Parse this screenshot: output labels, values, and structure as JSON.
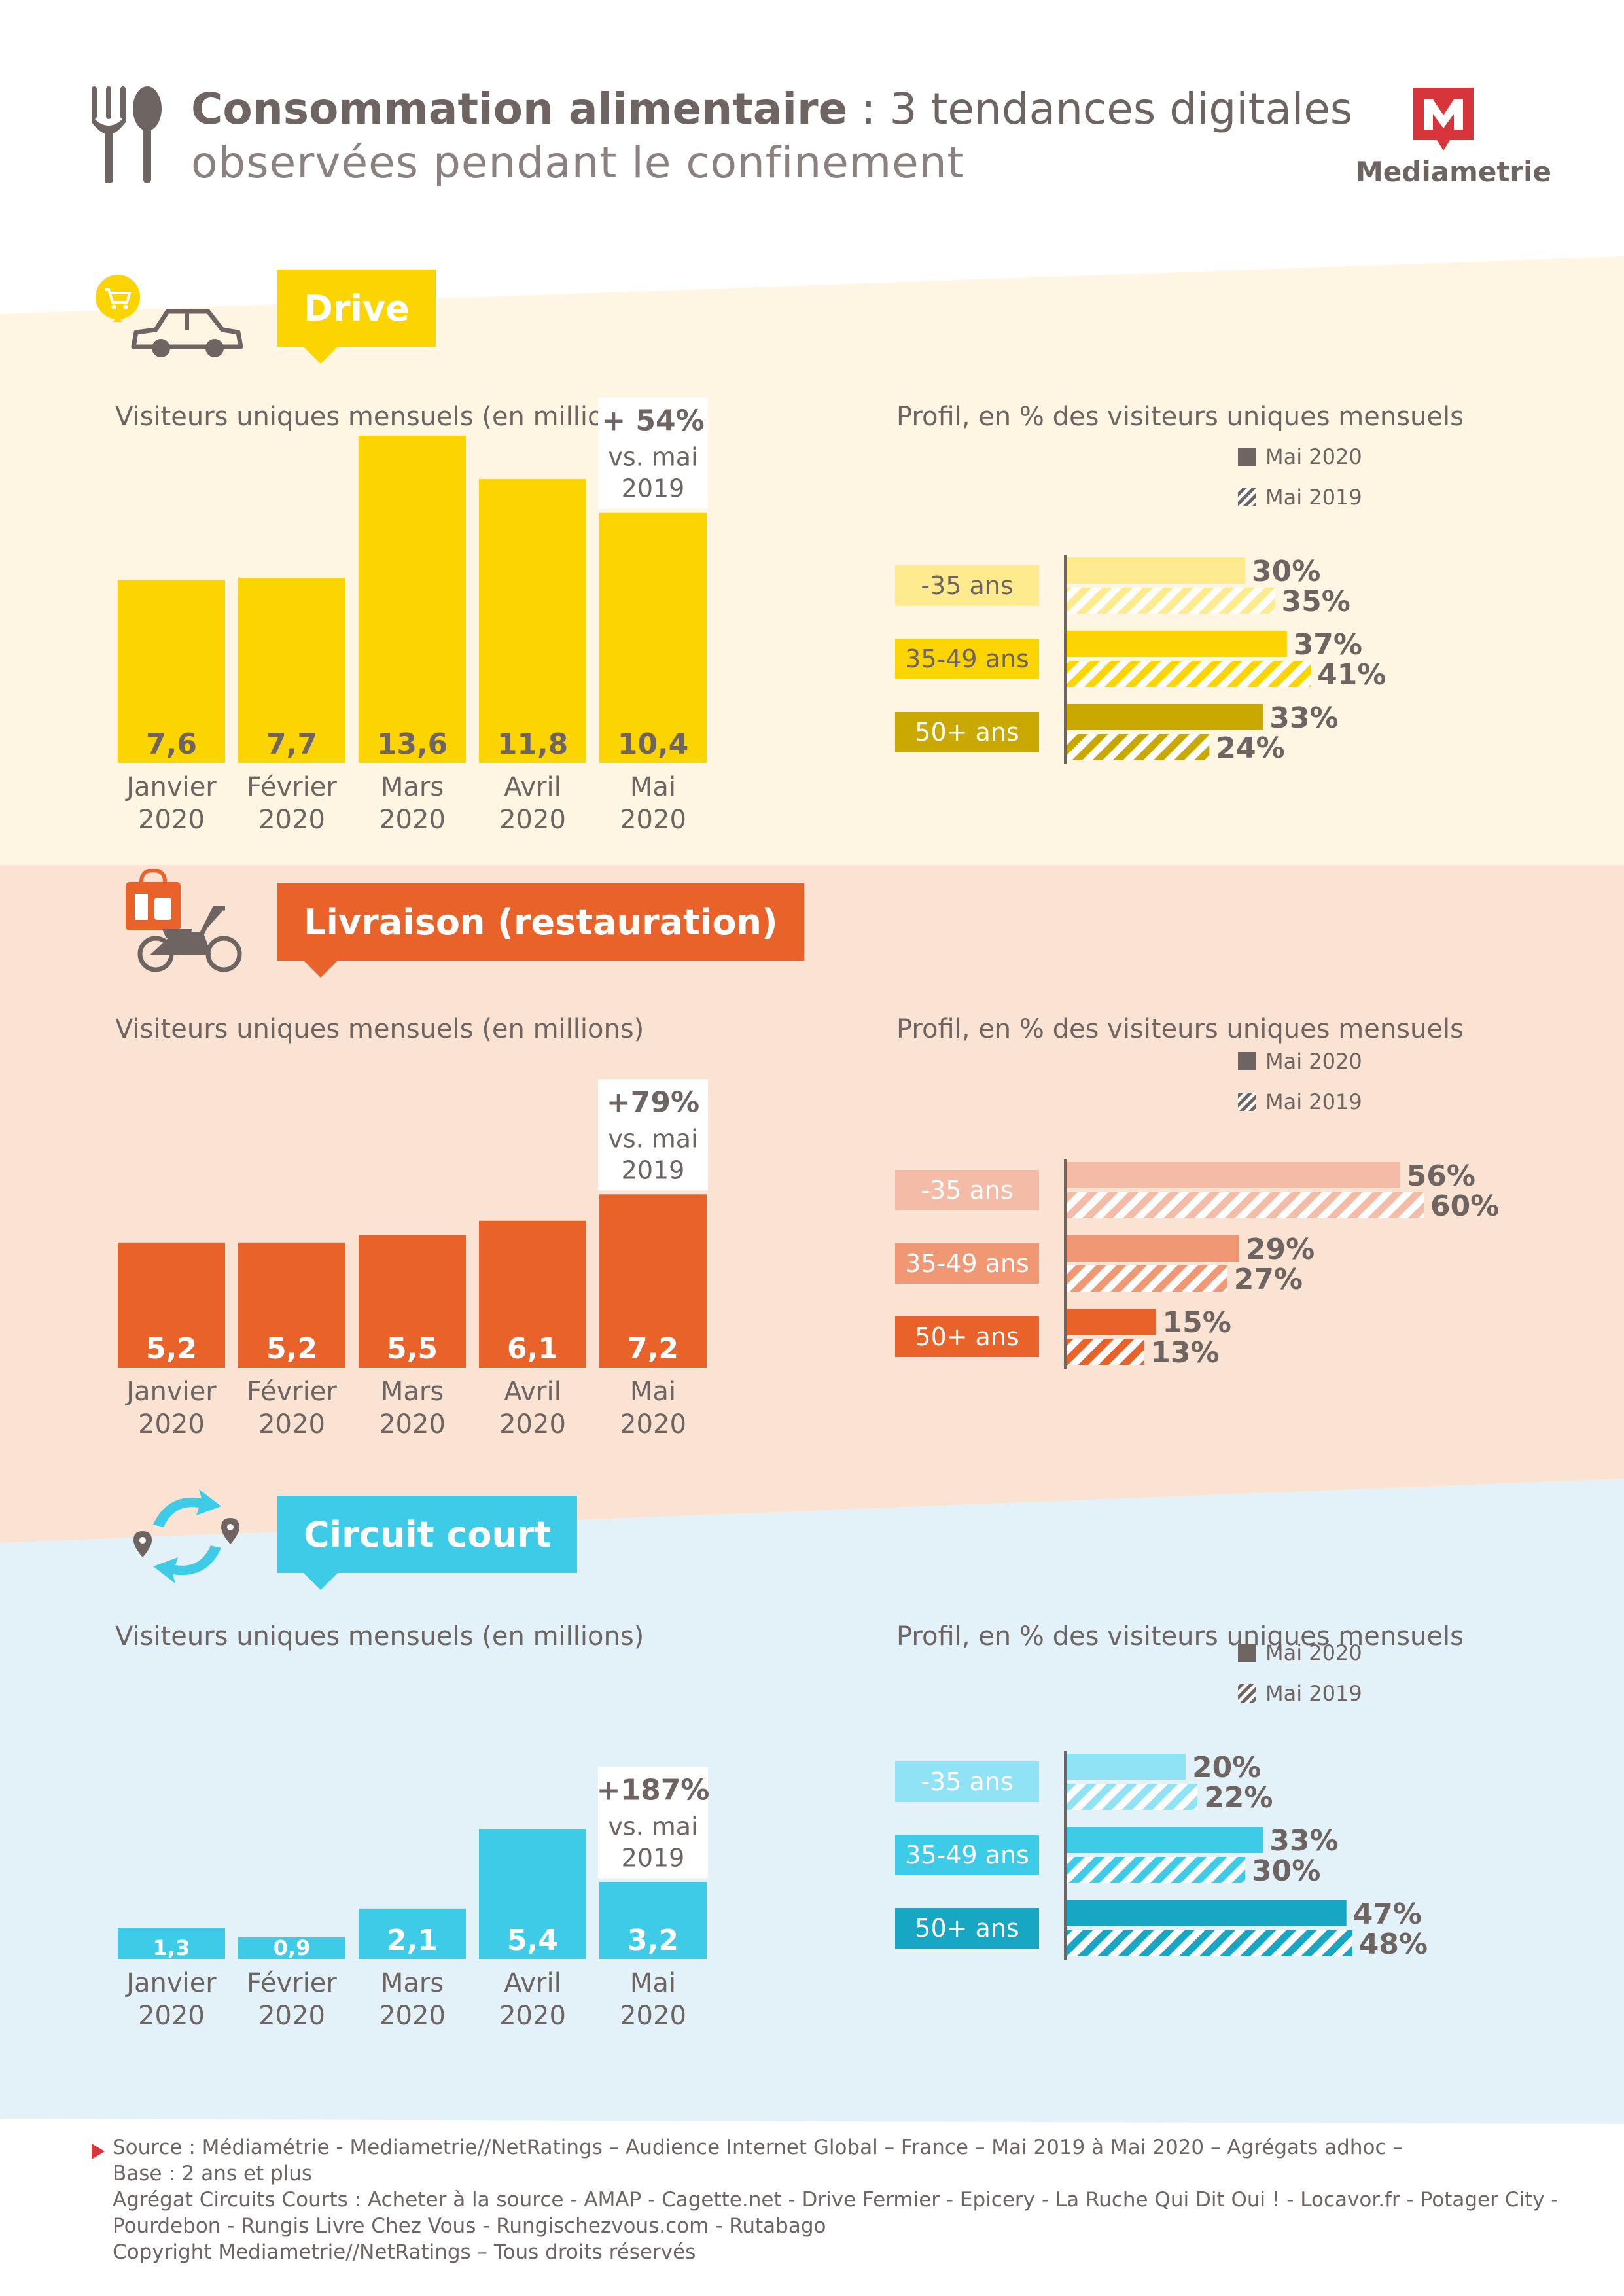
{
  "header": {
    "title_bold": "Consommation alimentaire",
    "title_rest": " : 3 tendances digitales",
    "title_line2": "observées pendant le confinement",
    "brand": "Mediametrie"
  },
  "colors": {
    "drive": "#fcd400",
    "livraison": "#e8622a",
    "circuit": "#3ecbe8",
    "text": "#6e6563"
  },
  "icons": [
    "fork-icon",
    "spoon-icon",
    "car-icon",
    "cart-icon",
    "scooter-icon",
    "delivery-bag-icon",
    "cycle-arrows-icon",
    "location-pin-icon",
    "mediametrie-logo-icon"
  ],
  "sections": [
    {
      "id": "drive",
      "label": "Drive",
      "bar_subtitle": "Visiteurs uniques mensuels (en millions)",
      "profile_subtitle": "Profil, en % des visiteurs uniques mensuels",
      "legend_2020": "Mai 2020",
      "legend_2019": "Mai 2019",
      "callout": [
        "+ 54%",
        "vs. mai",
        "2019"
      ]
    },
    {
      "id": "livraison",
      "label": "Livraison (restauration)",
      "bar_subtitle": "Visiteurs uniques mensuels (en millions)",
      "profile_subtitle": "Profil, en % des visiteurs uniques mensuels",
      "legend_2020": "Mai 2020",
      "legend_2019": "Mai 2019",
      "callout": [
        "+79%",
        "vs. mai",
        "2019"
      ]
    },
    {
      "id": "circuit",
      "label": "Circuit court",
      "bar_subtitle": "Visiteurs uniques mensuels (en millions)",
      "profile_subtitle": "Profil, en % des visiteurs uniques mensuels",
      "legend_2020": "Mai 2020",
      "legend_2019": "Mai 2019",
      "callout": [
        "+187%",
        "vs. mai",
        "2019"
      ]
    }
  ],
  "chart_data": [
    {
      "type": "bar",
      "title": "Visiteurs uniques mensuels (en millions)",
      "section": "Drive",
      "categories": [
        "Janvier 2020",
        "Février 2020",
        "Mars 2020",
        "Avril 2020",
        "Mai 2020"
      ],
      "values": [
        7.6,
        7.7,
        13.6,
        11.8,
        10.4
      ],
      "value_labels": [
        "7,6",
        "7,7",
        "13,6",
        "11,8",
        "10,4"
      ],
      "ylim": [
        0,
        14
      ]
    },
    {
      "type": "bar",
      "orientation": "horizontal",
      "title": "Profil, en % des visiteurs uniques mensuels",
      "section": "Drive",
      "categories": [
        "-35 ans",
        "35-49 ans",
        "50+ ans"
      ],
      "series": [
        {
          "name": "Mai 2020",
          "values": [
            30,
            37,
            33
          ]
        },
        {
          "name": "Mai 2019",
          "values": [
            35,
            41,
            24
          ]
        }
      ],
      "xlim": [
        0,
        60
      ]
    },
    {
      "type": "bar",
      "title": "Visiteurs uniques mensuels (en millions)",
      "section": "Livraison (restauration)",
      "categories": [
        "Janvier 2020",
        "Février 2020",
        "Mars 2020",
        "Avril 2020",
        "Mai 2020"
      ],
      "values": [
        5.2,
        5.2,
        5.5,
        6.1,
        7.2
      ],
      "value_labels": [
        "5,2",
        "5,2",
        "5,5",
        "6,1",
        "7,2"
      ],
      "ylim": [
        0,
        14
      ]
    },
    {
      "type": "bar",
      "orientation": "horizontal",
      "title": "Profil, en % des visiteurs uniques mensuels",
      "section": "Livraison (restauration)",
      "categories": [
        "-35 ans",
        "35-49 ans",
        "50+ ans"
      ],
      "series": [
        {
          "name": "Mai 2020",
          "values": [
            56,
            29,
            15
          ]
        },
        {
          "name": "Mai 2019",
          "values": [
            60,
            27,
            13
          ]
        }
      ],
      "xlim": [
        0,
        60
      ]
    },
    {
      "type": "bar",
      "title": "Visiteurs uniques mensuels (en millions)",
      "section": "Circuit court",
      "categories": [
        "Janvier 2020",
        "Février 2020",
        "Mars 2020",
        "Avril 2020",
        "Mai 2020"
      ],
      "values": [
        1.3,
        0.9,
        2.1,
        5.4,
        3.2
      ],
      "value_labels": [
        "1,3",
        "0,9",
        "2,1",
        "5,4",
        "3,2"
      ],
      "ylim": [
        0,
        14
      ]
    },
    {
      "type": "bar",
      "orientation": "horizontal",
      "title": "Profil, en % des visiteurs uniques mensuels",
      "section": "Circuit court",
      "categories": [
        "-35 ans",
        "35-49 ans",
        "50+ ans"
      ],
      "series": [
        {
          "name": "Mai 2020",
          "values": [
            20,
            33,
            47
          ]
        },
        {
          "name": "Mai 2019",
          "values": [
            22,
            30,
            48
          ]
        }
      ],
      "xlim": [
        0,
        60
      ]
    }
  ],
  "footer": {
    "lines": [
      "Source : Médiamétrie - Mediametrie//NetRatings – Audience Internet Global – France – Mai 2019 à Mai 2020 – Agrégats adhoc –",
      "Base : 2 ans et plus",
      "Agrégat Circuits Courts : Acheter à la source - AMAP - Cagette.net - Drive Fermier - Epicery - La Ruche Qui Dit Oui ! - Locavor.fr - Potager City -",
      "Pourdebon - Rungis Livre Chez Vous - Rungischezvous.com - Rutabago",
      "Copyright Mediametrie//NetRatings – Tous droits réservés"
    ]
  }
}
